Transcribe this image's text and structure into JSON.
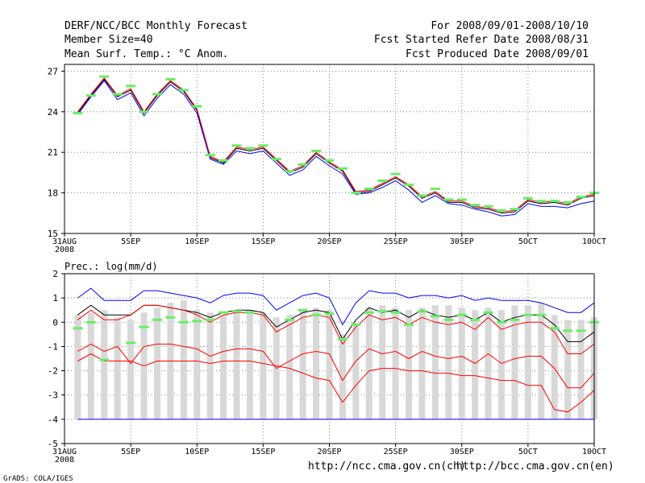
{
  "header": {
    "title": "DERF/NCC/BCC Monthly Forecast",
    "member_size": "Member Size=40",
    "variable": "Mean Surf. Temp.: °C Anom.",
    "period": "For 2008/09/01-2008/10/10",
    "fcst_started": "Fcst Started Refer Date 2008/08/31",
    "fcst_produced": "Fcst Produced Date 2008/09/01"
  },
  "footer": {
    "url_ch": "http://ncc.cma.gov.cn(ch)",
    "url_en": "http://bcc.cma.gov.cn(en)",
    "credit": "GrADS: COLA/IGES"
  },
  "colors": {
    "grid": "#808080",
    "ensemble": "#000000",
    "upper": "#0000ff",
    "lower": "#ff0000",
    "marker": "#66ee66",
    "box": "#d8d8d8"
  },
  "chart_data": [
    {
      "type": "line",
      "title": "Mean Surf. Temp.: °C Anom.",
      "xlabel": "",
      "ylabel": "",
      "ylim": [
        15,
        27.5
      ],
      "yticks": [
        15,
        18,
        21,
        24,
        27
      ],
      "xlim": [
        0,
        40
      ],
      "xticks": [
        0,
        5,
        10,
        15,
        20,
        25,
        30,
        35,
        40
      ],
      "xtick_labels": [
        "31AUG",
        "5SEP",
        "10SEP",
        "15SEP",
        "20SEP",
        "25SEP",
        "30SEP",
        "5OCT",
        "10OCT"
      ],
      "xtick_sublabel": "2008",
      "grid": true,
      "x": [
        1,
        2,
        3,
        4,
        5,
        6,
        7,
        8,
        9,
        10,
        11,
        12,
        13,
        14,
        15,
        16,
        17,
        18,
        19,
        20,
        21,
        22,
        23,
        24,
        25,
        26,
        27,
        28,
        29,
        30,
        31,
        32,
        33,
        34,
        35,
        36,
        37,
        38,
        39,
        40
      ],
      "series": [
        {
          "name": "black",
          "values": [
            23.9,
            25.2,
            26.4,
            25.1,
            25.6,
            23.9,
            25.2,
            26.2,
            25.5,
            24.1,
            20.6,
            20.2,
            21.3,
            21.1,
            21.3,
            20.4,
            19.5,
            19.9,
            20.9,
            20.2,
            19.6,
            18.0,
            18.1,
            18.6,
            19.1,
            18.5,
            17.6,
            18.0,
            17.3,
            17.3,
            16.9,
            16.8,
            16.5,
            16.6,
            17.4,
            17.2,
            17.3,
            17.1,
            17.6,
            17.8
          ]
        },
        {
          "name": "blue",
          "values": [
            23.8,
            25.1,
            26.3,
            24.9,
            25.4,
            23.7,
            25.0,
            26.0,
            25.3,
            23.9,
            20.5,
            20.1,
            21.1,
            20.9,
            21.1,
            20.2,
            19.3,
            19.7,
            20.7,
            20.0,
            19.4,
            17.9,
            18.0,
            18.4,
            18.9,
            18.2,
            17.3,
            17.8,
            17.2,
            17.1,
            16.8,
            16.6,
            16.3,
            16.4,
            17.2,
            17.0,
            17.0,
            16.9,
            17.2,
            17.4
          ]
        },
        {
          "name": "red",
          "values": [
            24.0,
            25.3,
            26.5,
            25.2,
            25.7,
            24.0,
            25.3,
            26.3,
            25.6,
            24.2,
            20.7,
            20.3,
            21.4,
            21.2,
            21.4,
            20.5,
            19.6,
            20.0,
            21.0,
            20.3,
            19.7,
            18.1,
            18.2,
            18.7,
            19.2,
            18.6,
            17.7,
            18.1,
            17.4,
            17.4,
            17.0,
            16.9,
            16.6,
            16.7,
            17.5,
            17.3,
            17.4,
            17.2,
            17.7,
            17.9
          ]
        },
        {
          "name": "markers",
          "values": [
            23.9,
            25.2,
            26.6,
            25.3,
            25.9,
            24.0,
            25.3,
            26.4,
            25.6,
            24.4,
            20.8,
            20.4,
            21.5,
            21.3,
            21.5,
            20.5,
            19.6,
            20.1,
            21.1,
            20.4,
            19.8,
            18.0,
            18.3,
            18.9,
            19.4,
            18.6,
            17.8,
            18.3,
            17.5,
            17.5,
            17.1,
            17.0,
            16.7,
            16.8,
            17.6,
            17.4,
            17.4,
            17.3,
            17.7,
            18.0
          ]
        }
      ]
    },
    {
      "type": "line",
      "title": "Prec.: log(mm/d)",
      "xlabel": "",
      "ylabel": "",
      "ylim": [
        -5,
        2
      ],
      "yticks": [
        -5,
        -4,
        -3,
        -2,
        -1,
        0,
        1,
        2
      ],
      "xlim": [
        0,
        40
      ],
      "xticks": [
        0,
        5,
        10,
        15,
        20,
        25,
        30,
        35,
        40
      ],
      "xtick_labels": [
        "31AUG",
        "5SEP",
        "10SEP",
        "15SEP",
        "20SEP",
        "25SEP",
        "30SEP",
        "5OCT",
        "10OCT"
      ],
      "xtick_sublabel": "2008",
      "grid": true,
      "x": [
        1,
        2,
        3,
        4,
        5,
        6,
        7,
        8,
        9,
        10,
        11,
        12,
        13,
        14,
        15,
        16,
        17,
        18,
        19,
        20,
        21,
        22,
        23,
        24,
        25,
        26,
        27,
        28,
        29,
        30,
        31,
        32,
        33,
        34,
        35,
        36,
        37,
        38,
        39,
        40
      ],
      "boxes": {
        "top": [
          0.3,
          0.4,
          0.5,
          0.2,
          0.1,
          0.4,
          0.6,
          0.8,
          0.9,
          0.5,
          0.4,
          0.3,
          0.5,
          0.5,
          0.4,
          0.2,
          0.3,
          0.5,
          0.6,
          0.5,
          -0.5,
          -0.1,
          0.6,
          0.7,
          0.6,
          0.5,
          0.6,
          0.7,
          0.7,
          0.6,
          0.5,
          0.6,
          0.5,
          0.7,
          0.7,
          0.8,
          0.3,
          0.1,
          0.1,
          0.2
        ],
        "bottom": [
          -4,
          -4,
          -4,
          -4,
          -4,
          -4,
          -4,
          -4,
          -4,
          -4,
          -4,
          -4,
          -4,
          -4,
          -4,
          -4,
          -4,
          -4,
          -4,
          -4,
          -4,
          -4,
          -4,
          -4,
          -4,
          -4,
          -4,
          -4,
          -4,
          -4,
          -4,
          -4,
          -4,
          -4,
          -4,
          -4,
          -4,
          -4,
          -4,
          -4
        ]
      },
      "series": [
        {
          "name": "blue-upper",
          "values": [
            1.0,
            1.4,
            0.9,
            0.9,
            0.9,
            1.3,
            1.3,
            1.2,
            1.1,
            1.0,
            0.8,
            1.1,
            1.2,
            1.2,
            1.1,
            0.5,
            0.8,
            1.1,
            1.2,
            1.0,
            -0.1,
            0.8,
            1.3,
            1.2,
            1.2,
            1.0,
            1.1,
            1.1,
            1.0,
            1.1,
            0.9,
            1.0,
            0.9,
            0.9,
            0.9,
            0.8,
            0.6,
            0.4,
            0.4,
            0.8
          ]
        },
        {
          "name": "black-mean",
          "values": [
            0.3,
            0.7,
            0.3,
            0.3,
            0.3,
            0.7,
            0.7,
            0.6,
            0.5,
            0.4,
            0.2,
            0.4,
            0.5,
            0.5,
            0.4,
            -0.2,
            0.1,
            0.4,
            0.5,
            0.4,
            -0.7,
            0.1,
            0.6,
            0.4,
            0.5,
            0.2,
            0.5,
            0.3,
            0.2,
            0.3,
            0.1,
            0.4,
            0.0,
            0.2,
            0.3,
            0.3,
            -0.1,
            -0.8,
            -0.8,
            -0.4
          ]
        },
        {
          "name": "red-q1",
          "values": [
            0.1,
            0.5,
            0.1,
            0.1,
            0.3,
            0.7,
            0.7,
            0.6,
            0.5,
            0.3,
            0.0,
            0.3,
            0.4,
            0.4,
            0.3,
            -0.4,
            -0.1,
            0.2,
            0.3,
            0.2,
            -0.9,
            -0.2,
            0.3,
            0.1,
            0.2,
            -0.1,
            0.2,
            0.0,
            -0.1,
            0.0,
            -0.3,
            0.2,
            -0.3,
            -0.1,
            0.0,
            0.0,
            -0.4,
            -1.3,
            -1.3,
            -0.9
          ]
        },
        {
          "name": "red-q2",
          "values": [
            -1.2,
            -0.9,
            -1.2,
            -1.0,
            -1.7,
            -1.0,
            -0.9,
            -0.9,
            -1.0,
            -1.1,
            -1.4,
            -1.2,
            -1.1,
            -1.1,
            -1.2,
            -1.9,
            -1.6,
            -1.3,
            -1.2,
            -1.3,
            -2.4,
            -1.6,
            -1.1,
            -1.3,
            -1.2,
            -1.5,
            -1.2,
            -1.4,
            -1.5,
            -1.4,
            -1.7,
            -1.3,
            -1.7,
            -1.5,
            -1.4,
            -1.4,
            -1.9,
            -2.7,
            -2.7,
            -2.1
          ]
        },
        {
          "name": "red-lower",
          "values": [
            -1.6,
            -1.3,
            -1.6,
            -1.6,
            -1.6,
            -1.8,
            -1.6,
            -1.6,
            -1.6,
            -1.6,
            -1.7,
            -1.6,
            -1.6,
            -1.6,
            -1.7,
            -1.8,
            -1.9,
            -2.1,
            -2.3,
            -2.4,
            -3.3,
            -2.6,
            -2.0,
            -1.9,
            -1.9,
            -2.0,
            -2.0,
            -2.1,
            -2.1,
            -2.2,
            -2.2,
            -2.3,
            -2.4,
            -2.4,
            -2.6,
            -2.6,
            -3.6,
            -3.7,
            -3.3,
            -2.8
          ]
        },
        {
          "name": "blue-min",
          "values": [
            -4,
            -4,
            -4,
            -4,
            -4,
            -4,
            -4,
            -4,
            -4,
            -4,
            -4,
            -4,
            -4,
            -4,
            -4,
            -4,
            -4,
            -4,
            -4,
            -4,
            -4,
            -4,
            -4,
            -4,
            -4,
            -4,
            -4,
            -4,
            -4,
            -4,
            -4,
            -4,
            -4,
            -4,
            -4,
            -4,
            -4,
            -4,
            -4,
            -4
          ]
        },
        {
          "name": "markers",
          "values": [
            -0.25,
            0.0,
            -1.55,
            null,
            -0.85,
            -0.2,
            0.1,
            0.2,
            0.0,
            0.05,
            0.1,
            0.4,
            0.45,
            0.4,
            null,
            null,
            0.1,
            0.5,
            0.3,
            0.35,
            -0.7,
            -0.1,
            0.4,
            0.45,
            0.4,
            -0.1,
            0.45,
            0.25,
            0.1,
            0.3,
            0.1,
            0.4,
            0.0,
            0.1,
            0.3,
            0.3,
            -0.25,
            -0.35,
            -0.35,
            0.0
          ]
        }
      ]
    }
  ]
}
